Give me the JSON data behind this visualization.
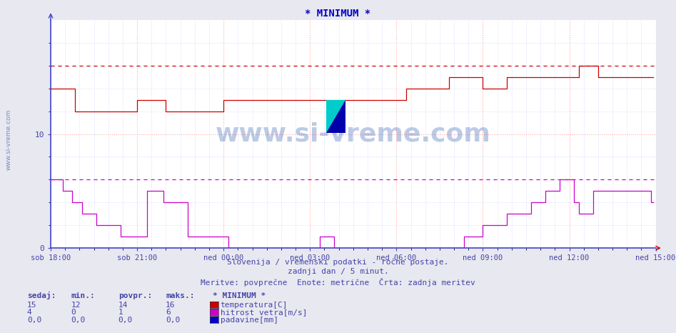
{
  "title": "* MINIMUM *",
  "title_color": "#0000cc",
  "bg_color": "#e8e8f0",
  "plot_bg_color": "#ffffff",
  "subtitle1": "Slovenija / vremenski podatki - ročne postaje.",
  "subtitle2": "zadnji dan / 5 minut.",
  "subtitle3": "Meritve: povprečne  Enote: metrične  Črta: zadnja meritev",
  "subtitle_color": "#4444aa",
  "watermark": "www.si-vreme.com",
  "watermark_color": "#2255aa",
  "tick_color": "#4444aa",
  "xlabels": [
    "sob 18:00",
    "sob 21:00",
    "ned 00:00",
    "ned 03:00",
    "ned 06:00",
    "ned 09:00",
    "ned 12:00",
    "ned 15:00"
  ],
  "xtick_positions": [
    0,
    36,
    72,
    108,
    144,
    180,
    216,
    252
  ],
  "total_points": 252,
  "ylim": [
    0,
    20
  ],
  "temp_color": "#cc0000",
  "wind_color": "#cc00cc",
  "rain_color": "#0000cc",
  "temp_max_dashed": 16,
  "wind_max_dashed": 6,
  "legend_items": [
    {
      "label": "temperatura[C]",
      "color": "#cc0000"
    },
    {
      "label": "hitrost vetra[m/s]",
      "color": "#cc00cc"
    },
    {
      "label": "padavine[mm]",
      "color": "#0000cc"
    }
  ],
  "table_headers": [
    "sedaj:",
    "min.:",
    "povpr.:",
    "maks.:"
  ],
  "table_rows": [
    [
      "15",
      "12",
      "14",
      "16"
    ],
    [
      "4",
      "0",
      "1",
      "6"
    ],
    [
      "0,0",
      "0,0",
      "0,0",
      "0,0"
    ]
  ],
  "table_color": "#4444aa",
  "temp_data": [
    14,
    14,
    14,
    14,
    14,
    14,
    14,
    14,
    14,
    14,
    12,
    12,
    12,
    12,
    12,
    12,
    12,
    12,
    12,
    12,
    12,
    12,
    12,
    12,
    12,
    12,
    12,
    12,
    12,
    12,
    12,
    12,
    12,
    12,
    12,
    12,
    13,
    13,
    13,
    13,
    13,
    13,
    13,
    13,
    13,
    13,
    13,
    13,
    12,
    12,
    12,
    12,
    12,
    12,
    12,
    12,
    12,
    12,
    12,
    12,
    12,
    12,
    12,
    12,
    12,
    12,
    12,
    12,
    12,
    12,
    12,
    12,
    13,
    13,
    13,
    13,
    13,
    13,
    13,
    13,
    13,
    13,
    13,
    13,
    13,
    13,
    13,
    13,
    13,
    13,
    13,
    13,
    13,
    13,
    13,
    13,
    13,
    13,
    13,
    13,
    13,
    13,
    13,
    13,
    13,
    13,
    13,
    13,
    13,
    13,
    13,
    13,
    13,
    13,
    13,
    13,
    13,
    13,
    13,
    13,
    13,
    13,
    13,
    13,
    13,
    13,
    13,
    13,
    13,
    13,
    13,
    13,
    13,
    13,
    13,
    13,
    13,
    13,
    13,
    13,
    13,
    13,
    13,
    13,
    13,
    13,
    13,
    13,
    14,
    14,
    14,
    14,
    14,
    14,
    14,
    14,
    14,
    14,
    14,
    14,
    14,
    14,
    14,
    14,
    14,
    14,
    15,
    15,
    15,
    15,
    15,
    15,
    15,
    15,
    15,
    15,
    15,
    15,
    15,
    15,
    14,
    14,
    14,
    14,
    14,
    14,
    14,
    14,
    14,
    14,
    15,
    15,
    15,
    15,
    15,
    15,
    15,
    15,
    15,
    15,
    15,
    15,
    15,
    15,
    15,
    15,
    15,
    15,
    15,
    15,
    15,
    15,
    15,
    15,
    15,
    15,
    15,
    15,
    15,
    15,
    16,
    16,
    16,
    16,
    16,
    16,
    16,
    16,
    15,
    15,
    15,
    15,
    15,
    15,
    15,
    15,
    15,
    15,
    15,
    15,
    15,
    15,
    15,
    15,
    15,
    15,
    15,
    15,
    15,
    15,
    15,
    15
  ],
  "wind_data": [
    6,
    6,
    6,
    6,
    6,
    5,
    5,
    5,
    5,
    4,
    4,
    4,
    4,
    3,
    3,
    3,
    3,
    3,
    3,
    2,
    2,
    2,
    2,
    2,
    2,
    2,
    2,
    2,
    2,
    1,
    1,
    1,
    1,
    1,
    1,
    1,
    1,
    1,
    1,
    1,
    5,
    5,
    5,
    5,
    5,
    5,
    5,
    4,
    4,
    4,
    4,
    4,
    4,
    4,
    4,
    4,
    4,
    1,
    1,
    1,
    1,
    1,
    1,
    1,
    1,
    1,
    1,
    1,
    1,
    1,
    1,
    1,
    1,
    1,
    0,
    0,
    0,
    0,
    0,
    0,
    0,
    0,
    0,
    0,
    0,
    0,
    0,
    0,
    0,
    0,
    0,
    0,
    0,
    0,
    0,
    0,
    0,
    0,
    0,
    0,
    0,
    0,
    0,
    0,
    0,
    0,
    0,
    0,
    0,
    0,
    0,
    0,
    1,
    1,
    1,
    1,
    1,
    1,
    0,
    0,
    0,
    0,
    0,
    0,
    0,
    0,
    0,
    0,
    0,
    0,
    0,
    0,
    0,
    0,
    0,
    0,
    0,
    0,
    0,
    0,
    0,
    0,
    0,
    0,
    0,
    0,
    0,
    0,
    0,
    0,
    0,
    0,
    0,
    0,
    0,
    0,
    0,
    0,
    0,
    0,
    0,
    0,
    0,
    0,
    0,
    0,
    0,
    0,
    0,
    0,
    0,
    0,
    1,
    1,
    1,
    1,
    1,
    1,
    1,
    1,
    2,
    2,
    2,
    2,
    2,
    2,
    2,
    2,
    2,
    2,
    3,
    3,
    3,
    3,
    3,
    3,
    3,
    3,
    3,
    3,
    4,
    4,
    4,
    4,
    4,
    4,
    5,
    5,
    5,
    5,
    5,
    5,
    6,
    6,
    6,
    6,
    6,
    6,
    4,
    4,
    3,
    3,
    3,
    3,
    3,
    3,
    5,
    5,
    5,
    5,
    5,
    5,
    5,
    5,
    5,
    5,
    5,
    5,
    5,
    5,
    5,
    5,
    5,
    5,
    5,
    5,
    5,
    5,
    5,
    5,
    4,
    4
  ]
}
